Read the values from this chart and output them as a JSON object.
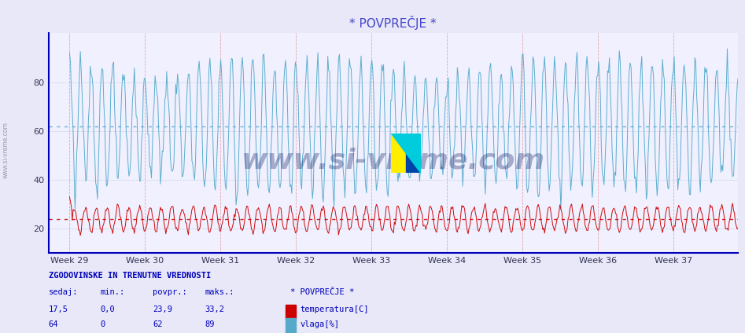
{
  "title": "* POVPREČJE *",
  "title_color": "#4444cc",
  "bg_color": "#e8e8f8",
  "plot_bg_color": "#f0f0ff",
  "ylim": [
    10,
    100
  ],
  "xlim_start": 28.72,
  "xlim_end": 37.85,
  "yticks": [
    20,
    40,
    60,
    80
  ],
  "week_labels": [
    "Week 29",
    "Week 30",
    "Week 31",
    "Week 32",
    "Week 33",
    "Week 34",
    "Week 35",
    "Week 36",
    "Week 37"
  ],
  "week_positions": [
    29,
    30,
    31,
    32,
    33,
    34,
    35,
    36,
    37
  ],
  "temp_color": "#cc0000",
  "humidity_color": "#55aacc",
  "temp_avg": 23.9,
  "humidity_avg": 62,
  "legend_title": "* POVPREČJE *",
  "label_temp": "temperatura[C]",
  "label_humidity": "vlaga[%]",
  "table_header": "ZGODOVINSKE IN TRENUTNE VREDNOSTI",
  "col_headers": [
    "sedaj:",
    "min.:",
    "povpr.:",
    "maks.:"
  ],
  "temp_row": [
    "17,5",
    "0,0",
    "23,9",
    "33,2"
  ],
  "humidity_row": [
    "64",
    "0",
    "62",
    "89"
  ],
  "watermark": "www.si-vreme.com",
  "axis_color": "#0000bb",
  "vgrid_color": "#dd8888",
  "hgrid_color": "#aabbcc",
  "sidebar_text": "www.si-vreme.com"
}
